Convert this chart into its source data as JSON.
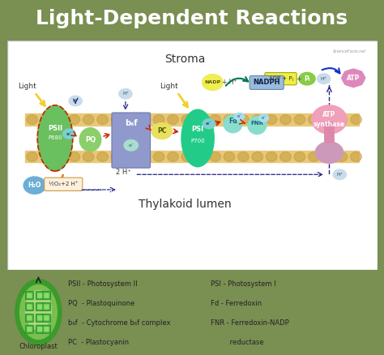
{
  "title": "Light-Dependent Reactions",
  "title_bg": "#7a8f52",
  "title_color": "white",
  "title_fontsize": 18,
  "diagram_bg": "#ffffff",
  "outer_bg": "#7a8f52",
  "stroma_label": "Stroma",
  "lumen_label": "Thylakoid lumen",
  "legend_items_left": [
    "PSII - Photosystem II",
    "PQ  - Plastoquinone",
    "b₆f  - Cytochrome b₆f complex",
    "PC  - Plastocyanin"
  ],
  "legend_items_right": [
    "PSI - Photosystem I",
    "Fd - Ferredoxin",
    "FNR - Ferredoxin-NADP",
    "         reductase"
  ],
  "watermark": "ScienceFacts.net"
}
